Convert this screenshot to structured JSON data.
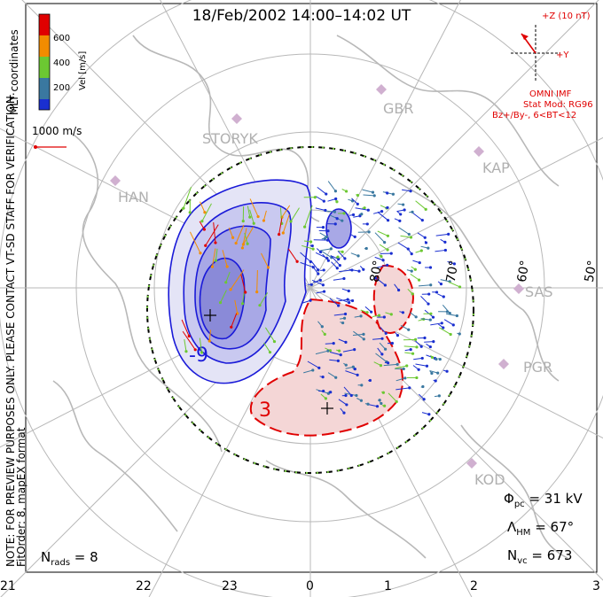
{
  "title": "18/Feb/2002 14:00–14:02 UT",
  "colorbar": {
    "label": "Vel [m/s]",
    "ticks": [
      "600",
      "400",
      "200"
    ],
    "colors": [
      "#e00000",
      "#f28c00",
      "#6cc832",
      "#3a78a0",
      "#1a2fd0"
    ]
  },
  "coord_label": "MLT coordinates",
  "velocity_scale": "1000 m/s",
  "imf": {
    "z_label": "+Z (10 nT)",
    "y_label": "+Y",
    "source": "OMNI IMF",
    "model": "Stat Mod: RG96",
    "condition": "Bz+/By-, 6<BT<12"
  },
  "stations": [
    "STORYK",
    "HAN",
    "GBR",
    "KAP",
    "SAS",
    "PGR",
    "KOD"
  ],
  "latitude_labels": [
    "80°",
    "70°",
    "60°",
    "50°"
  ],
  "contour_labels": {
    "negative": "-9",
    "positive": "3"
  },
  "note_lines": [
    "NOTE: FOR PREVIEW PURPOSES ONLY. PLEASE CONTACT VT-SD STAFF FOR VERIFICATION.",
    "FitOrder: 8, mapEX format"
  ],
  "stats": {
    "nrads": "N",
    "nrads_sub": "rads",
    "nrads_val": " = 8",
    "phi": "Φ",
    "phi_sub": "pc",
    "phi_val": " = 31 kV",
    "lam": "Λ",
    "lam_sub": "HM",
    "lam_val": " = 67°",
    "nvc": "N",
    "nvc_sub": "vc",
    "nvc_val": " = 673"
  },
  "mlt_ticks": [
    "21",
    "22",
    "23",
    "0",
    "1",
    "2",
    "3"
  ],
  "colors": {
    "negative_fill": "#c9c9f0",
    "positive_fill": "#f4d6d6",
    "map_lines": "#b8b8b8",
    "negative_contour": "#1a1ad8",
    "positive_contour": "#e00000"
  }
}
